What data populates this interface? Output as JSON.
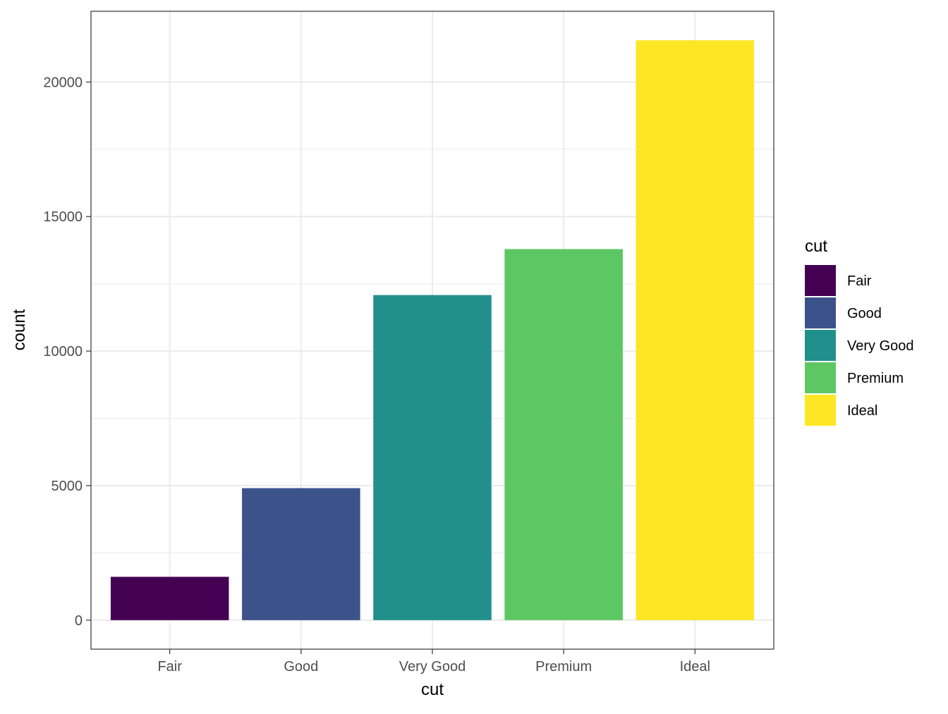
{
  "chart_data": {
    "type": "bar",
    "title": "",
    "xlabel": "cut",
    "ylabel": "count",
    "categories": [
      "Fair",
      "Good",
      "Very Good",
      "Premium",
      "Ideal"
    ],
    "values": [
      1610,
      4906,
      12082,
      13791,
      21551
    ],
    "colors": [
      "#440154",
      "#3B528B",
      "#21908C",
      "#5DC863",
      "#FDE725"
    ],
    "ylim": [
      -1078,
      22629
    ],
    "yticks": [
      0,
      5000,
      10000,
      15000,
      20000
    ],
    "ytick_labels": [
      "0",
      "5000",
      "10000",
      "15000",
      "20000"
    ],
    "y_minor_ticks": [
      2500,
      7500,
      12500,
      17500
    ],
    "grid": true,
    "legend": {
      "title": "cut",
      "position": "right",
      "entries": [
        "Fair",
        "Good",
        "Very Good",
        "Premium",
        "Ideal"
      ]
    }
  }
}
